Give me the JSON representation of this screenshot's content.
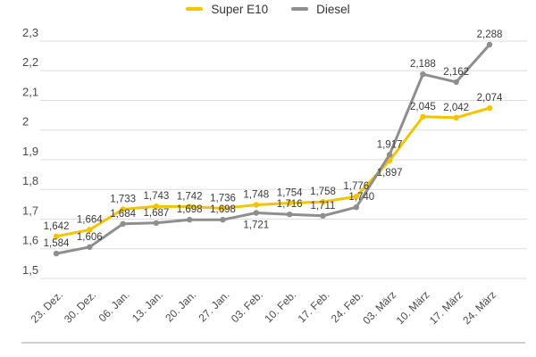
{
  "legend": {
    "items": [
      {
        "label": "Super E10"
      },
      {
        "label": "Diesel"
      }
    ]
  },
  "chart_data": {
    "type": "line",
    "title": "",
    "xlabel": "",
    "ylabel": "",
    "categories": [
      "23. Dez.",
      "30. Dez.",
      "06. Jan.",
      "13. Jan.",
      "20. Jan.",
      "27. Jan.",
      "03. Feb.",
      "10. Feb.",
      "17. Feb.",
      "24. Feb.",
      "03. März",
      "10. März",
      "17. März",
      "24. März"
    ],
    "series": [
      {
        "name": "Super E10",
        "color": "#f5c400",
        "values": [
          1.642,
          1.664,
          1.733,
          1.743,
          1.742,
          1.736,
          1.748,
          1.754,
          1.758,
          1.776,
          1.897,
          2.045,
          2.042,
          2.074
        ]
      },
      {
        "name": "Diesel",
        "color": "#8e8e8e",
        "values": [
          1.584,
          1.606,
          1.684,
          1.687,
          1.698,
          1.698,
          1.721,
          1.716,
          1.711,
          1.74,
          1.917,
          2.188,
          2.162,
          2.288
        ]
      }
    ],
    "ylim": [
      1.5,
      2.3
    ],
    "y_ticks": [
      {
        "label": "2,3",
        "value": 2.3
      },
      {
        "label": "2,2",
        "value": 2.2
      },
      {
        "label": "2,1",
        "value": 2.1
      },
      {
        "label": "2",
        "value": 2.0
      },
      {
        "label": "1,9",
        "value": 1.9
      },
      {
        "label": "1,8",
        "value": 1.8
      },
      {
        "label": "1,7",
        "value": 1.7
      },
      {
        "label": "1,6",
        "value": 1.6
      },
      {
        "label": "1,5",
        "value": 1.5
      }
    ],
    "grid": true,
    "legend_position": "top-center",
    "data_labels": true,
    "number_format": "decimal-comma-3"
  },
  "colors": {
    "grid": "#dedede",
    "axis_text": "#4b4b4b",
    "data_label_text": "#3a3a3a",
    "legend_text": "#333333",
    "divider": "#cfcfcf",
    "background": "#ffffff"
  }
}
